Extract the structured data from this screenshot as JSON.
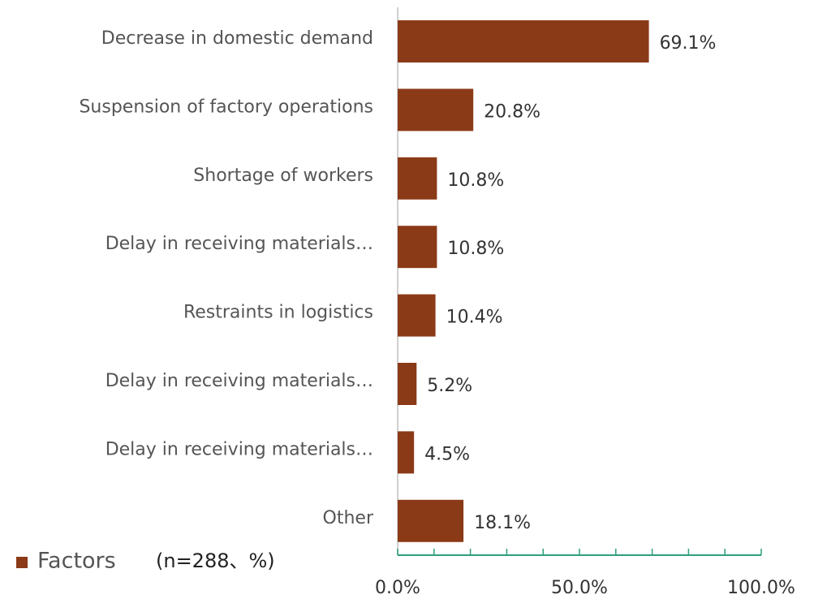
{
  "chart_data": {
    "type": "hbar",
    "categories": [
      "Decrease in domestic demand",
      "Suspension of factory operations",
      "Shortage of workers",
      "Delay in receiving materials…",
      "Restraints in logistics",
      "Delay in receiving materials…",
      "Delay in receiving materials…",
      "Other"
    ],
    "series": [
      {
        "name": "Factors",
        "color": "#8b3a17",
        "values": [
          69.1,
          20.8,
          10.8,
          10.8,
          10.4,
          5.2,
          4.5,
          18.1
        ],
        "value_labels": [
          "69.1%",
          "20.8%",
          "10.8%",
          "10.8%",
          "10.4%",
          "5.2%",
          "4.5%",
          "18.1%"
        ]
      }
    ],
    "legend_note": "(n=288、%)",
    "xlim": [
      0,
      100
    ],
    "xticks": [
      {
        "value": 0,
        "label": "0.0%"
      },
      {
        "value": 50,
        "label": "50.0%"
      },
      {
        "value": 100,
        "label": "100.0%"
      }
    ],
    "minor_xticks": [
      10,
      20,
      30,
      40,
      60,
      70,
      80,
      90
    ],
    "legend": "bottom-left"
  }
}
